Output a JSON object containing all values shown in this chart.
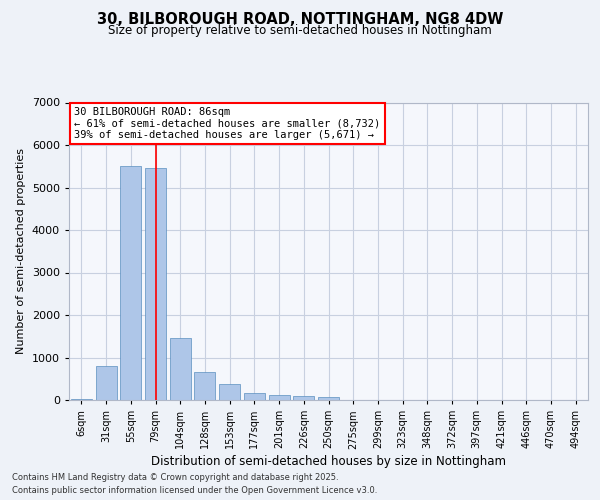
{
  "title1": "30, BILBOROUGH ROAD, NOTTINGHAM, NG8 4DW",
  "title2": "Size of property relative to semi-detached houses in Nottingham",
  "xlabel": "Distribution of semi-detached houses by size in Nottingham",
  "ylabel": "Number of semi-detached properties",
  "categories": [
    "6sqm",
    "31sqm",
    "55sqm",
    "79sqm",
    "104sqm",
    "128sqm",
    "153sqm",
    "177sqm",
    "201sqm",
    "226sqm",
    "250sqm",
    "275sqm",
    "299sqm",
    "323sqm",
    "348sqm",
    "372sqm",
    "397sqm",
    "421sqm",
    "446sqm",
    "470sqm",
    "494sqm"
  ],
  "values": [
    15,
    800,
    5500,
    5450,
    1450,
    650,
    380,
    165,
    115,
    95,
    80,
    0,
    0,
    0,
    0,
    0,
    0,
    0,
    0,
    0,
    0
  ],
  "bar_color": "#aec6e8",
  "bar_edge_color": "#5a8fc0",
  "vline_color": "red",
  "annotation_title": "30 BILBOROUGH ROAD: 86sqm",
  "annotation_line2": "← 61% of semi-detached houses are smaller (8,732)",
  "annotation_line3": "39% of semi-detached houses are larger (5,671) →",
  "ylim": [
    0,
    7000
  ],
  "yticks": [
    0,
    1000,
    2000,
    3000,
    4000,
    5000,
    6000,
    7000
  ],
  "footer1": "Contains HM Land Registry data © Crown copyright and database right 2025.",
  "footer2": "Contains public sector information licensed under the Open Government Licence v3.0.",
  "bg_color": "#eef2f8",
  "plot_bg_color": "#f5f7fc",
  "grid_color": "#c8d0e0"
}
